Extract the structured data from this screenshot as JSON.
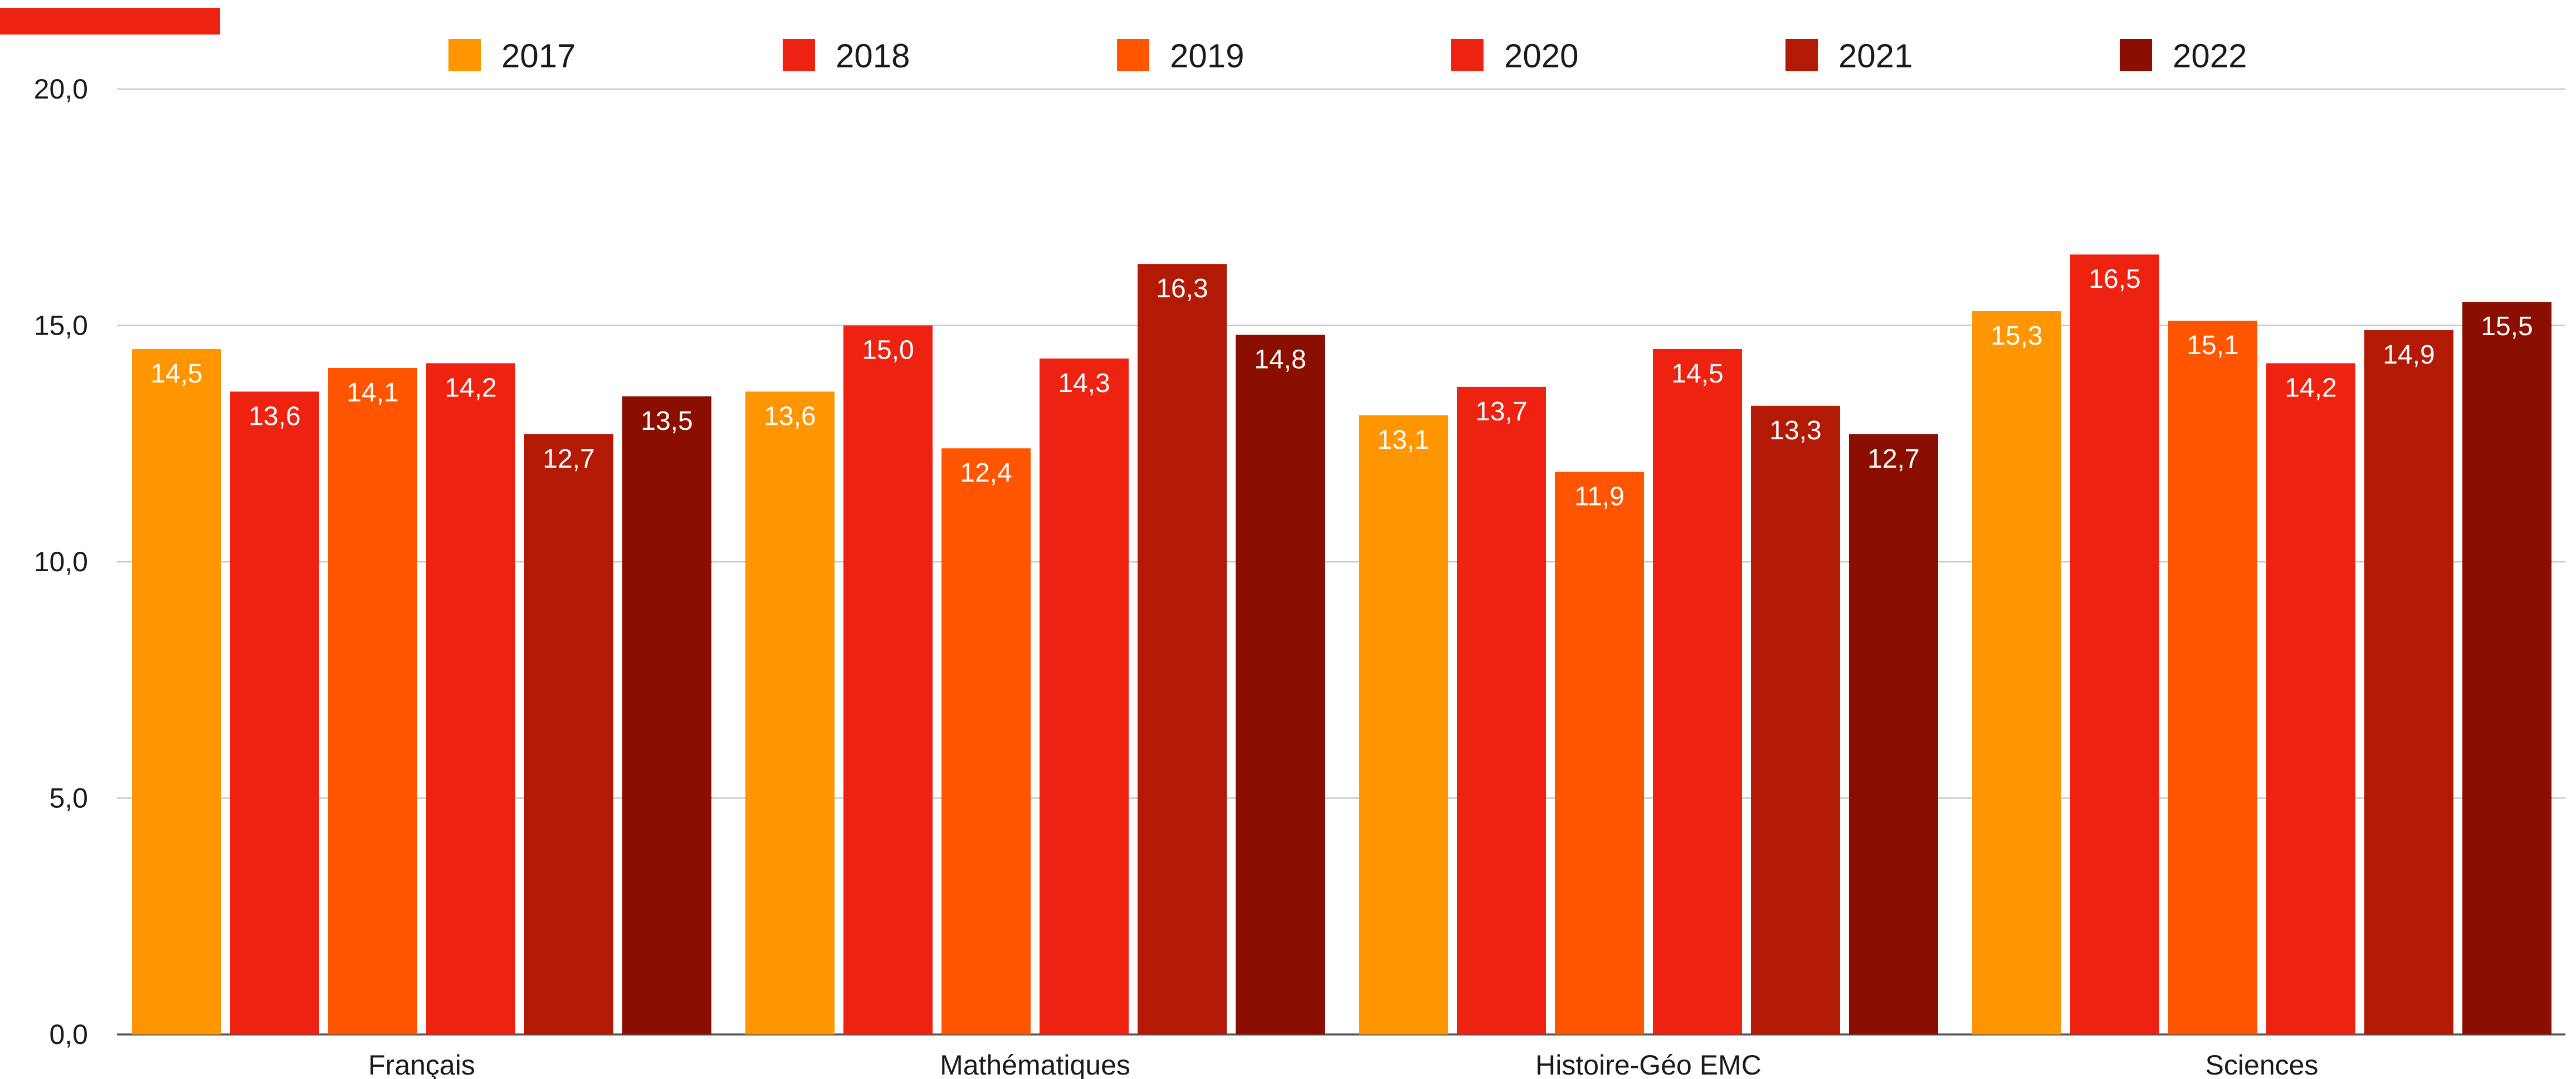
{
  "chart_data": {
    "type": "bar",
    "categories": [
      "Français",
      "Mathématiques",
      "Histoire-Géo EMC",
      "Sciences"
    ],
    "series": [
      {
        "name": "2017",
        "color": "#FF9500",
        "values": [
          14.5,
          13.6,
          13.1,
          15.3
        ]
      },
      {
        "name": "2018",
        "color": "#EE2211",
        "values": [
          13.6,
          15.0,
          13.7,
          16.5
        ]
      },
      {
        "name": "2019",
        "color": "#FF5500",
        "values": [
          14.1,
          12.4,
          11.9,
          15.1
        ]
      },
      {
        "name": "2020",
        "color": "#EE2211",
        "values": [
          14.2,
          14.3,
          14.5,
          14.2
        ]
      },
      {
        "name": "2021",
        "color": "#B31A05",
        "values": [
          12.7,
          16.3,
          13.3,
          14.9
        ]
      },
      {
        "name": "2022",
        "color": "#8A0F00",
        "values": [
          13.5,
          14.8,
          12.7,
          15.5
        ]
      }
    ],
    "data_labels": [
      [
        "14,5",
        "13,6",
        "13,1",
        "15,3"
      ],
      [
        "13,6",
        "15,0",
        "13,7",
        "16,5"
      ],
      [
        "14,1",
        "12,4",
        "11,9",
        "15,1"
      ],
      [
        "14,2",
        "14,3",
        "14,5",
        "14,2"
      ],
      [
        "12,7",
        "16,3",
        "13,3",
        "14,9"
      ],
      [
        "13,5",
        "14,8",
        "12,7",
        "15,5"
      ]
    ],
    "y_ticks": [
      0,
      5,
      10,
      15,
      20
    ],
    "y_tick_labels": [
      "0,0",
      "5,0",
      "10,0",
      "15,0",
      "20,0"
    ],
    "ylim": [
      0,
      20
    ],
    "title": "",
    "xlabel": "",
    "ylabel": "",
    "grid": true,
    "legend": "top",
    "accent_color": "#EE2211"
  }
}
